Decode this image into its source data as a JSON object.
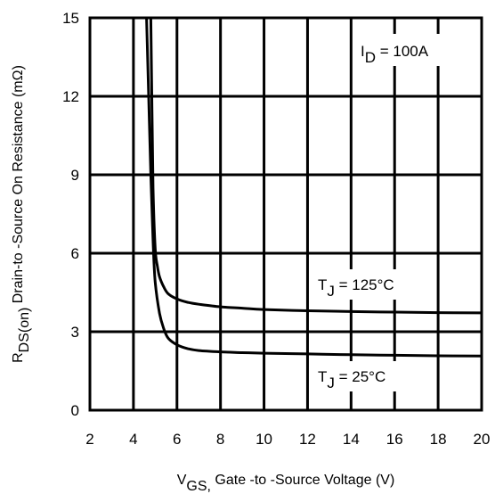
{
  "chart_data": {
    "type": "line",
    "xlim": [
      2,
      20
    ],
    "ylim": [
      0,
      15
    ],
    "xticks": [
      2,
      4,
      6,
      8,
      10,
      12,
      14,
      16,
      18,
      20
    ],
    "yticks": [
      0,
      3,
      6,
      9,
      12,
      15
    ],
    "grid": true,
    "xlabel": {
      "main": "V",
      "sub": "GS,",
      "rest": " Gate -to -Source Voltage  (V)"
    },
    "ylabel": {
      "main": "R",
      "sub": "DS(on)",
      "rest": "  Drain-to -Source On Resistance (mΩ)"
    },
    "condition": {
      "main": "I",
      "sub": "D",
      "rest": " = 100A"
    },
    "series": [
      {
        "name": {
          "main": "T",
          "sub": "J",
          "rest": " = 125°C"
        },
        "x": [
          4.8,
          4.85,
          4.9,
          5.0,
          5.1,
          5.2,
          5.4,
          5.6,
          6,
          6.5,
          7,
          8,
          9,
          10,
          12,
          14,
          16,
          18,
          20
        ],
        "y": [
          15,
          11.5,
          8.5,
          6.2,
          5.5,
          5.1,
          4.7,
          4.45,
          4.25,
          4.12,
          4.05,
          3.95,
          3.9,
          3.85,
          3.8,
          3.77,
          3.75,
          3.73,
          3.72
        ]
      },
      {
        "name": {
          "main": "T",
          "sub": "J",
          "rest": " = 25°C"
        },
        "x": [
          4.6,
          4.7,
          4.8,
          4.9,
          5.0,
          5.2,
          5.4,
          5.6,
          6,
          6.5,
          7,
          8,
          9,
          10,
          12,
          14,
          16,
          18,
          20
        ],
        "y": [
          15,
          12,
          9,
          6.5,
          4.9,
          3.7,
          3.1,
          2.75,
          2.5,
          2.35,
          2.28,
          2.23,
          2.2,
          2.18,
          2.15,
          2.12,
          2.1,
          2.08,
          2.07
        ]
      }
    ]
  }
}
